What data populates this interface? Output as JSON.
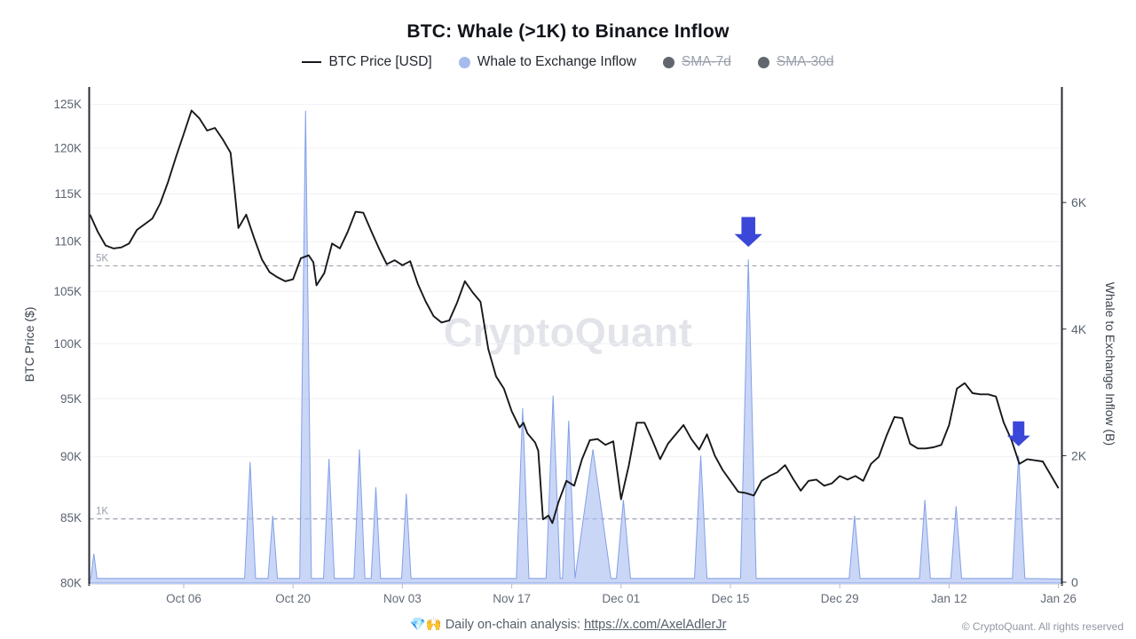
{
  "title": "BTC: Whale (>1K) to Binance Inflow",
  "watermark": "CryptoQuant",
  "legend": [
    {
      "label": "BTC Price [USD]",
      "swatch": "line",
      "color": "#17181c",
      "enabled": true
    },
    {
      "label": "Whale to Exchange Inflow",
      "swatch": "circle",
      "color": "#a6baee",
      "enabled": true
    },
    {
      "label": "SMA-7d",
      "swatch": "circle",
      "color": "#62676f",
      "enabled": false
    },
    {
      "label": "SMA-30d",
      "swatch": "circle",
      "color": "#62676f",
      "enabled": false
    }
  ],
  "footer": {
    "emojis": "💎🙌",
    "text": "Daily on-chain analysis:",
    "link_text": "https://x.com/AxelAdlerJr",
    "copyright": "© CryptoQuant. All rights reserved"
  },
  "chart_data": {
    "type": "line+area",
    "title": "BTC: Whale (>1K) to Binance Inflow",
    "x_axis": {
      "start_date": "Sep 24",
      "tick_days": [
        12,
        26,
        40,
        54,
        68,
        82,
        96,
        110,
        124
      ],
      "tick_labels": [
        "Oct 06",
        "Oct 20",
        "Nov 03",
        "Nov 17",
        "Dec 01",
        "Dec 15",
        "Dec 29",
        "Jan 12",
        "Jan 26"
      ]
    },
    "left_axis": {
      "title": "BTC Price ($)",
      "scale": "log",
      "unit": "K USD",
      "tick_values": [
        125,
        120,
        115,
        110,
        105,
        100,
        95,
        90,
        85,
        80
      ],
      "tick_labels": [
        "125K",
        "120K",
        "115K",
        "110K",
        "105K",
        "100K",
        "95K",
        "90K",
        "85K",
        "80K"
      ]
    },
    "right_axis": {
      "title": "Whale to Exchange Inflow (B)",
      "scale": "linear",
      "unit": "K BTC",
      "tick_values": [
        6,
        4,
        2,
        0
      ],
      "tick_labels": [
        "6K",
        "4K",
        "2K",
        "0"
      ],
      "reference_lines": [
        {
          "label": "5K",
          "value": 5
        },
        {
          "label": "1K",
          "value": 1
        }
      ]
    },
    "series": [
      {
        "name": "BTC Price [USD]",
        "type": "line",
        "color": "#17181c",
        "axis": "left",
        "points": [
          [
            0,
            112.8
          ],
          [
            1,
            111.0
          ],
          [
            2,
            109.6
          ],
          [
            3,
            109.3
          ],
          [
            4,
            109.4
          ],
          [
            5,
            109.8
          ],
          [
            6,
            111.2
          ],
          [
            7,
            111.8
          ],
          [
            8,
            112.4
          ],
          [
            9,
            114.0
          ],
          [
            10,
            116.3
          ],
          [
            11,
            119.0
          ],
          [
            12,
            121.6
          ],
          [
            13,
            124.3
          ],
          [
            14,
            123.4
          ],
          [
            15,
            122.0
          ],
          [
            16,
            122.3
          ],
          [
            17,
            121.0
          ],
          [
            18,
            119.5
          ],
          [
            18.5,
            115.5
          ],
          [
            19,
            111.4
          ],
          [
            20,
            112.8
          ],
          [
            21,
            110.4
          ],
          [
            22,
            108.2
          ],
          [
            23,
            106.9
          ],
          [
            24,
            106.4
          ],
          [
            25,
            106.0
          ],
          [
            26,
            106.2
          ],
          [
            27,
            108.3
          ],
          [
            28,
            108.6
          ],
          [
            28.6,
            107.9
          ],
          [
            29,
            105.6
          ],
          [
            30,
            106.8
          ],
          [
            31,
            109.8
          ],
          [
            32,
            109.3
          ],
          [
            33,
            111.0
          ],
          [
            34,
            113.1
          ],
          [
            35,
            113.0
          ],
          [
            36,
            111.1
          ],
          [
            37,
            109.3
          ],
          [
            38,
            107.7
          ],
          [
            39,
            108.1
          ],
          [
            40,
            107.6
          ],
          [
            41,
            108.0
          ],
          [
            42,
            105.7
          ],
          [
            43,
            104.0
          ],
          [
            44,
            102.6
          ],
          [
            45,
            102.0
          ],
          [
            46,
            102.2
          ],
          [
            47,
            103.9
          ],
          [
            48,
            106.0
          ],
          [
            49,
            104.9
          ],
          [
            50,
            104.0
          ],
          [
            51,
            99.5
          ],
          [
            52,
            97.0
          ],
          [
            53,
            95.9
          ],
          [
            54,
            93.9
          ],
          [
            55,
            92.5
          ],
          [
            55.5,
            92.9
          ],
          [
            56,
            92.0
          ],
          [
            57,
            91.2
          ],
          [
            57.4,
            90.5
          ],
          [
            58,
            84.9
          ],
          [
            58.7,
            85.2
          ],
          [
            59.2,
            84.6
          ],
          [
            60,
            86.3
          ],
          [
            61,
            88.0
          ],
          [
            62,
            87.6
          ],
          [
            63,
            89.8
          ],
          [
            64,
            91.4
          ],
          [
            65,
            91.5
          ],
          [
            66,
            91.0
          ],
          [
            67,
            91.3
          ],
          [
            68,
            86.5
          ],
          [
            69,
            89.3
          ],
          [
            70,
            92.9
          ],
          [
            71,
            92.9
          ],
          [
            72,
            91.4
          ],
          [
            73,
            89.8
          ],
          [
            74,
            91.1
          ],
          [
            75,
            91.9
          ],
          [
            76,
            92.7
          ],
          [
            77,
            91.5
          ],
          [
            78,
            90.6
          ],
          [
            79,
            91.9
          ],
          [
            80,
            90.1
          ],
          [
            81,
            88.9
          ],
          [
            82,
            88.0
          ],
          [
            83,
            87.1
          ],
          [
            84,
            87.0
          ],
          [
            85,
            86.8
          ],
          [
            86,
            88.0
          ],
          [
            87,
            88.4
          ],
          [
            88,
            88.7
          ],
          [
            89,
            89.3
          ],
          [
            90,
            88.2
          ],
          [
            91,
            87.2
          ],
          [
            92,
            88.0
          ],
          [
            93,
            88.1
          ],
          [
            94,
            87.6
          ],
          [
            95,
            87.8
          ],
          [
            96,
            88.4
          ],
          [
            97,
            88.1
          ],
          [
            98,
            88.4
          ],
          [
            99,
            88.0
          ],
          [
            100,
            89.4
          ],
          [
            101,
            90.0
          ],
          [
            102,
            91.8
          ],
          [
            103,
            93.4
          ],
          [
            104,
            93.3
          ],
          [
            105,
            91.1
          ],
          [
            106,
            90.7
          ],
          [
            107,
            90.7
          ],
          [
            108,
            90.8
          ],
          [
            109,
            91.0
          ],
          [
            110,
            92.7
          ],
          [
            111,
            95.9
          ],
          [
            112,
            96.4
          ],
          [
            113,
            95.5
          ],
          [
            114,
            95.4
          ],
          [
            115,
            95.4
          ],
          [
            116,
            95.2
          ],
          [
            117,
            92.9
          ],
          [
            118,
            91.4
          ],
          [
            119,
            89.4
          ],
          [
            120,
            89.8
          ],
          [
            121,
            89.7
          ],
          [
            122,
            89.6
          ],
          [
            123,
            88.5
          ],
          [
            124,
            87.4
          ]
        ]
      },
      {
        "name": "Whale to Exchange Inflow",
        "type": "area",
        "axis": "right",
        "fill": "#aabdf0",
        "stroke": "#82a0e8",
        "baseline": 0.05,
        "spikes": [
          [
            0.5,
            0.45,
            0.4
          ],
          [
            20.5,
            1.9,
            0.7
          ],
          [
            23.4,
            1.05,
            0.6
          ],
          [
            27.6,
            7.45,
            0.75
          ],
          [
            30.6,
            1.95,
            0.7
          ],
          [
            34.5,
            2.1,
            0.7
          ],
          [
            36.6,
            1.5,
            0.6
          ],
          [
            40.5,
            1.4,
            0.6
          ],
          [
            55.4,
            2.75,
            0.8
          ],
          [
            59.3,
            2.95,
            0.9
          ],
          [
            61.3,
            2.55,
            0.8
          ],
          [
            64.4,
            2.1,
            2.3
          ],
          [
            68.3,
            1.3,
            0.9
          ],
          [
            78.2,
            2.0,
            0.8
          ],
          [
            84.3,
            5.1,
            1.0
          ],
          [
            97.9,
            1.05,
            0.7
          ],
          [
            106.9,
            1.3,
            0.7
          ],
          [
            110.9,
            1.2,
            0.7
          ],
          [
            118.9,
            2.0,
            0.8
          ]
        ]
      },
      {
        "name": "SMA-7d",
        "type": "line",
        "disabled": true
      },
      {
        "name": "SMA-30d",
        "type": "line",
        "disabled": true
      }
    ],
    "annotations": {
      "arrows": [
        {
          "day": 84.3,
          "tip_value": 5.3,
          "color": "#3b47d8",
          "size": 1.2
        },
        {
          "day": 118.9,
          "tip_value": 2.15,
          "color": "#3b47d8",
          "size": 1.0
        }
      ]
    },
    "layout_hints": {
      "grid": "horizontal-left-ticks",
      "legend_position": "top-center"
    }
  }
}
